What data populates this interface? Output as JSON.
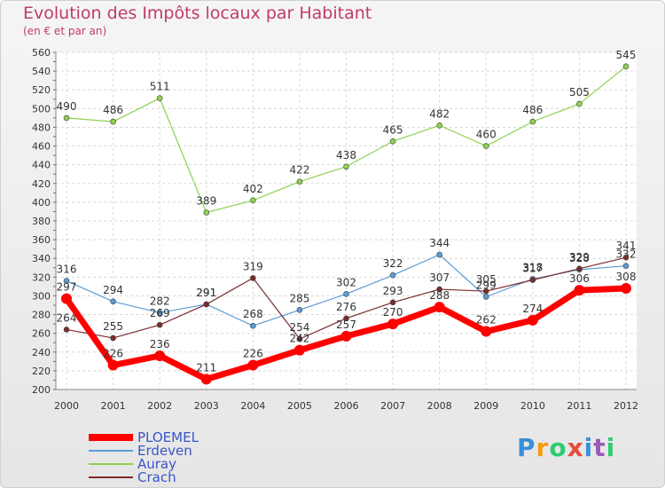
{
  "header": {
    "title": "Evolution des Impôts locaux par Habitant",
    "subtitle": "(en € et par an)"
  },
  "logo": {
    "text": "Proxiti"
  },
  "chart_data": {
    "type": "line",
    "title": "Evolution des Impôts locaux par Habitant",
    "subtitle": "(en € et par an)",
    "x": [
      "2000",
      "2001",
      "2002",
      "2003",
      "2004",
      "2005",
      "2006",
      "2007",
      "2008",
      "2009",
      "2010",
      "2011",
      "2012"
    ],
    "ylim": [
      200,
      560
    ],
    "yticks": [
      200,
      220,
      240,
      260,
      280,
      300,
      320,
      340,
      360,
      380,
      400,
      420,
      440,
      460,
      480,
      500,
      520,
      540,
      560
    ],
    "grid": true,
    "legend_placement": "bottom-left",
    "series": [
      {
        "name": "PLOEMEL",
        "color": "#ff0000",
        "values": [
          297,
          226,
          236,
          211,
          226,
          242,
          257,
          270,
          288,
          262,
          274,
          306,
          308
        ]
      },
      {
        "name": "Erdeven",
        "color": "#5b9bd5",
        "values": [
          316,
          294,
          282,
          291,
          268,
          285,
          302,
          322,
          344,
          299,
          318,
          328,
          332
        ]
      },
      {
        "name": "Auray",
        "color": "#8fd14f",
        "values": [
          490,
          486,
          511,
          389,
          402,
          422,
          438,
          465,
          482,
          460,
          486,
          505,
          545
        ]
      },
      {
        "name": "Crach",
        "color": "#7a2c2c",
        "values": [
          264,
          255,
          269,
          291,
          319,
          254,
          276,
          293,
          307,
          305,
          317,
          329,
          341
        ]
      }
    ]
  }
}
